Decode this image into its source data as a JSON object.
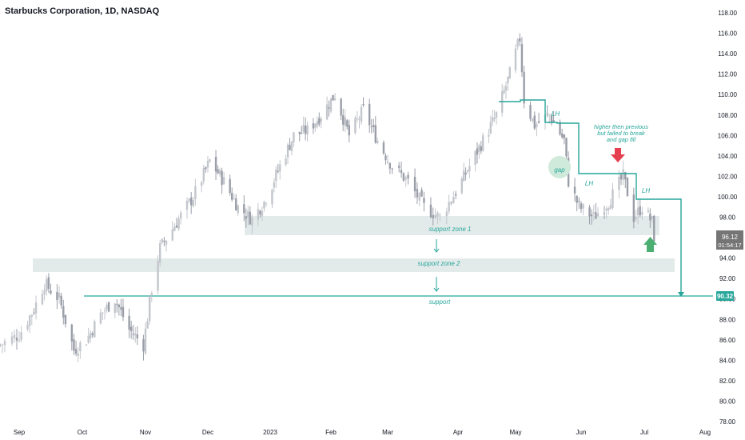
{
  "header": {
    "symbol_title": "Starbucks Corporation, 1D, NASDAQ"
  },
  "colors": {
    "candle": "#9a9ea8",
    "candle_up": "#c3c6cc",
    "annotation": "#26a69a",
    "zone_fill": "#e3ebea",
    "arrow_down": "#e5404f",
    "arrow_up": "#4caf72",
    "price_label_bg": "#757575",
    "support_label_bg": "#26a69a"
  },
  "chart_data": {
    "type": "candlestick",
    "title": "Starbucks Corporation, 1D, NASDAQ",
    "ylim": [
      78,
      118
    ],
    "y_ticks": [
      "118.00",
      "116.00",
      "114.00",
      "112.00",
      "110.00",
      "108.00",
      "106.00",
      "104.00",
      "102.00",
      "100.00",
      "98.00",
      "96.00",
      "94.00",
      "92.00",
      "90.00",
      "88.00",
      "86.00",
      "84.00",
      "82.00",
      "80.00",
      "78.00"
    ],
    "y_tick_values": [
      118,
      116,
      114,
      112,
      110,
      108,
      106,
      104,
      102,
      100,
      98,
      96,
      94,
      92,
      90,
      88,
      86,
      84,
      82,
      80,
      78
    ],
    "x_ticks": [
      "Sep",
      "Oct",
      "Nov",
      "Dec",
      "2023",
      "Feb",
      "Mar",
      "Apr",
      "May",
      "Jun",
      "Jul",
      "Aug"
    ],
    "x_tick_dates": [
      "2022-09-01",
      "2022-10-01",
      "2022-11-01",
      "2022-12-01",
      "2023-01-01",
      "2023-02-01",
      "2023-03-01",
      "2023-04-01",
      "2023-05-01",
      "2023-06-01",
      "2023-07-01",
      "2023-08-01"
    ],
    "grid": false,
    "key_points": [
      {
        "date": "2022-08-24",
        "close": 85.5
      },
      {
        "date": "2022-09-01",
        "close": 86.5
      },
      {
        "date": "2022-09-08",
        "close": 89.0
      },
      {
        "date": "2022-09-13",
        "close": 91.5
      },
      {
        "date": "2022-09-20",
        "close": 90.0
      },
      {
        "date": "2022-09-27",
        "close": 85.0
      },
      {
        "date": "2022-10-03",
        "close": 86.0
      },
      {
        "date": "2022-10-10",
        "close": 88.5
      },
      {
        "date": "2022-10-17",
        "close": 90.0
      },
      {
        "date": "2022-10-24",
        "close": 87.0
      },
      {
        "date": "2022-10-31",
        "close": 85.5
      },
      {
        "date": "2022-11-04",
        "close": 91.0
      },
      {
        "date": "2022-11-08",
        "close": 95.0
      },
      {
        "date": "2022-11-16",
        "close": 97.5
      },
      {
        "date": "2022-11-24",
        "close": 100.0
      },
      {
        "date": "2022-12-02",
        "close": 103.5
      },
      {
        "date": "2022-12-09",
        "close": 101.5
      },
      {
        "date": "2022-12-16",
        "close": 99.0
      },
      {
        "date": "2022-12-23",
        "close": 97.8
      },
      {
        "date": "2022-12-29",
        "close": 99.5
      },
      {
        "date": "2023-01-06",
        "close": 103.0
      },
      {
        "date": "2023-01-13",
        "close": 106.0
      },
      {
        "date": "2023-01-20",
        "close": 106.5
      },
      {
        "date": "2023-01-27",
        "close": 108.0
      },
      {
        "date": "2023-02-03",
        "close": 110.0
      },
      {
        "date": "2023-02-10",
        "close": 106.0
      },
      {
        "date": "2023-02-17",
        "close": 108.5
      },
      {
        "date": "2023-02-24",
        "close": 105.5
      },
      {
        "date": "2023-03-03",
        "close": 103.0
      },
      {
        "date": "2023-03-10",
        "close": 101.5
      },
      {
        "date": "2023-03-17",
        "close": 99.0
      },
      {
        "date": "2023-03-24",
        "close": 98.0
      },
      {
        "date": "2023-03-31",
        "close": 100.5
      },
      {
        "date": "2023-04-07",
        "close": 103.0
      },
      {
        "date": "2023-04-14",
        "close": 105.5
      },
      {
        "date": "2023-04-21",
        "close": 108.0
      },
      {
        "date": "2023-04-28",
        "close": 112.0
      },
      {
        "date": "2023-05-03",
        "close": 115.5
      },
      {
        "date": "2023-05-05",
        "close": 109.5
      },
      {
        "date": "2023-05-10",
        "close": 107.0
      },
      {
        "date": "2023-05-17",
        "close": 108.0
      },
      {
        "date": "2023-05-24",
        "close": 105.5
      },
      {
        "date": "2023-05-26",
        "close": 101.5
      },
      {
        "date": "2023-05-31",
        "close": 99.0
      },
      {
        "date": "2023-06-07",
        "close": 98.0
      },
      {
        "date": "2023-06-14",
        "close": 99.5
      },
      {
        "date": "2023-06-21",
        "close": 102.0
      },
      {
        "date": "2023-06-26",
        "close": 98.0
      },
      {
        "date": "2023-06-30",
        "close": 99.0
      },
      {
        "date": "2023-07-05",
        "close": 97.5
      },
      {
        "date": "2023-07-06",
        "close": 96.12
      }
    ],
    "annotations": {
      "zones": [
        {
          "label": "support zone 1",
          "low": 96.2,
          "high": 98.0
        },
        {
          "label": "support zone 2",
          "low": 93.0,
          "high": 94.2
        }
      ],
      "support_line": {
        "label": "support",
        "value": 90.32
      },
      "labels": [
        "LH",
        "LH",
        "LH",
        "gap"
      ],
      "note": "higher then previous but failed to break and gap fill"
    },
    "last_price": {
      "value": "96.12",
      "countdown": "01:54:17"
    },
    "support_price_label": "90.32"
  }
}
